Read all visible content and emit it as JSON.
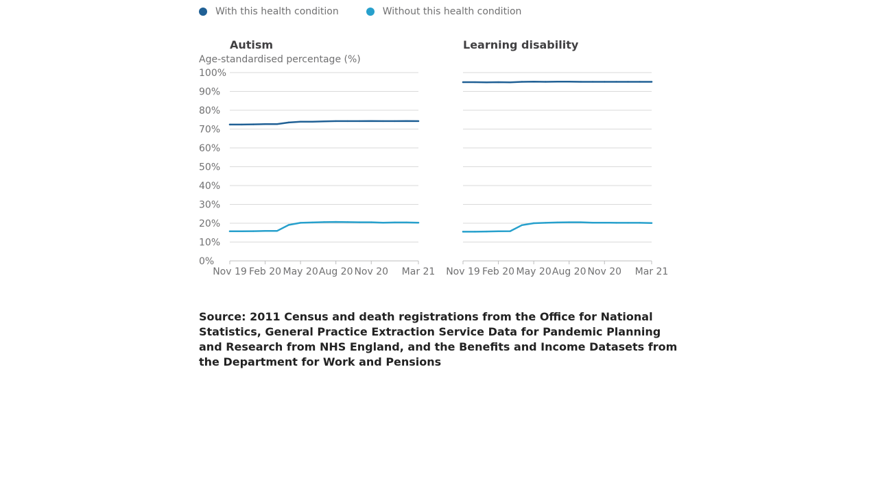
{
  "legend": {
    "items": [
      {
        "label": "With this health condition",
        "color": "#206095"
      },
      {
        "label": "Without this health condition",
        "color": "#27a0cc"
      }
    ]
  },
  "y_axis_label": "Age-standardised percentage (%)",
  "source": "Source: 2011 Census and death registrations from the Office for National Statistics, General Practice Extraction Service Data for Pandemic Planning and Research from NHS England, and the Benefits and Income Datasets from the Department for Work and Pensions",
  "chart_data": [
    {
      "type": "line",
      "title": "Autism",
      "ylabel": "Age-standardised percentage (%)",
      "ylim": [
        0,
        100
      ],
      "yticks": [
        0,
        10,
        20,
        30,
        40,
        50,
        60,
        70,
        80,
        90,
        100
      ],
      "ytick_labels": [
        "0%",
        "10%",
        "20%",
        "30%",
        "40%",
        "50%",
        "60%",
        "70%",
        "80%",
        "90%",
        "100%"
      ],
      "x": [
        "2019-11",
        "2019-12",
        "2020-01",
        "2020-02",
        "2020-03",
        "2020-04",
        "2020-05",
        "2020-06",
        "2020-07",
        "2020-08",
        "2020-09",
        "2020-10",
        "2020-11",
        "2020-12",
        "2021-01",
        "2021-02",
        "2021-03"
      ],
      "xticks": [
        "Nov 19",
        "Feb 20",
        "May 20",
        "Aug 20",
        "Nov 20",
        "Mar 21"
      ],
      "xtick_positions": [
        0,
        3,
        6,
        9,
        12,
        16
      ],
      "grid": true,
      "series": [
        {
          "name": "With this health condition",
          "color": "#206095",
          "values": [
            72.4,
            72.4,
            72.5,
            72.6,
            72.6,
            73.5,
            73.9,
            73.9,
            74.1,
            74.2,
            74.2,
            74.2,
            74.3,
            74.2,
            74.2,
            74.3,
            74.2
          ]
        },
        {
          "name": "Without this health condition",
          "color": "#27a0cc",
          "values": [
            15.7,
            15.7,
            15.8,
            15.9,
            15.9,
            19.1,
            20.2,
            20.4,
            20.6,
            20.7,
            20.6,
            20.5,
            20.5,
            20.3,
            20.4,
            20.4,
            20.3
          ]
        }
      ]
    },
    {
      "type": "line",
      "title": "Learning disability",
      "ylim": [
        0,
        100
      ],
      "yticks": [
        0,
        10,
        20,
        30,
        40,
        50,
        60,
        70,
        80,
        90,
        100
      ],
      "x": [
        "2019-11",
        "2019-12",
        "2020-01",
        "2020-02",
        "2020-03",
        "2020-04",
        "2020-05",
        "2020-06",
        "2020-07",
        "2020-08",
        "2020-09",
        "2020-10",
        "2020-11",
        "2020-12",
        "2021-01",
        "2021-02",
        "2021-03"
      ],
      "xticks": [
        "Nov 19",
        "Feb 20",
        "May 20",
        "Aug 20",
        "Nov 20",
        "Mar 21"
      ],
      "xtick_positions": [
        0,
        3,
        6,
        9,
        12,
        16
      ],
      "grid": true,
      "series": [
        {
          "name": "With this health condition",
          "color": "#206095",
          "values": [
            94.9,
            94.9,
            94.8,
            94.9,
            94.8,
            95.1,
            95.2,
            95.1,
            95.2,
            95.2,
            95.1,
            95.1,
            95.1,
            95.1,
            95.1,
            95.1,
            95.1
          ]
        },
        {
          "name": "Without this health condition",
          "color": "#27a0cc",
          "values": [
            15.5,
            15.5,
            15.6,
            15.7,
            15.8,
            19.0,
            20.0,
            20.2,
            20.4,
            20.5,
            20.5,
            20.3,
            20.3,
            20.2,
            20.2,
            20.2,
            20.1
          ]
        }
      ]
    }
  ]
}
